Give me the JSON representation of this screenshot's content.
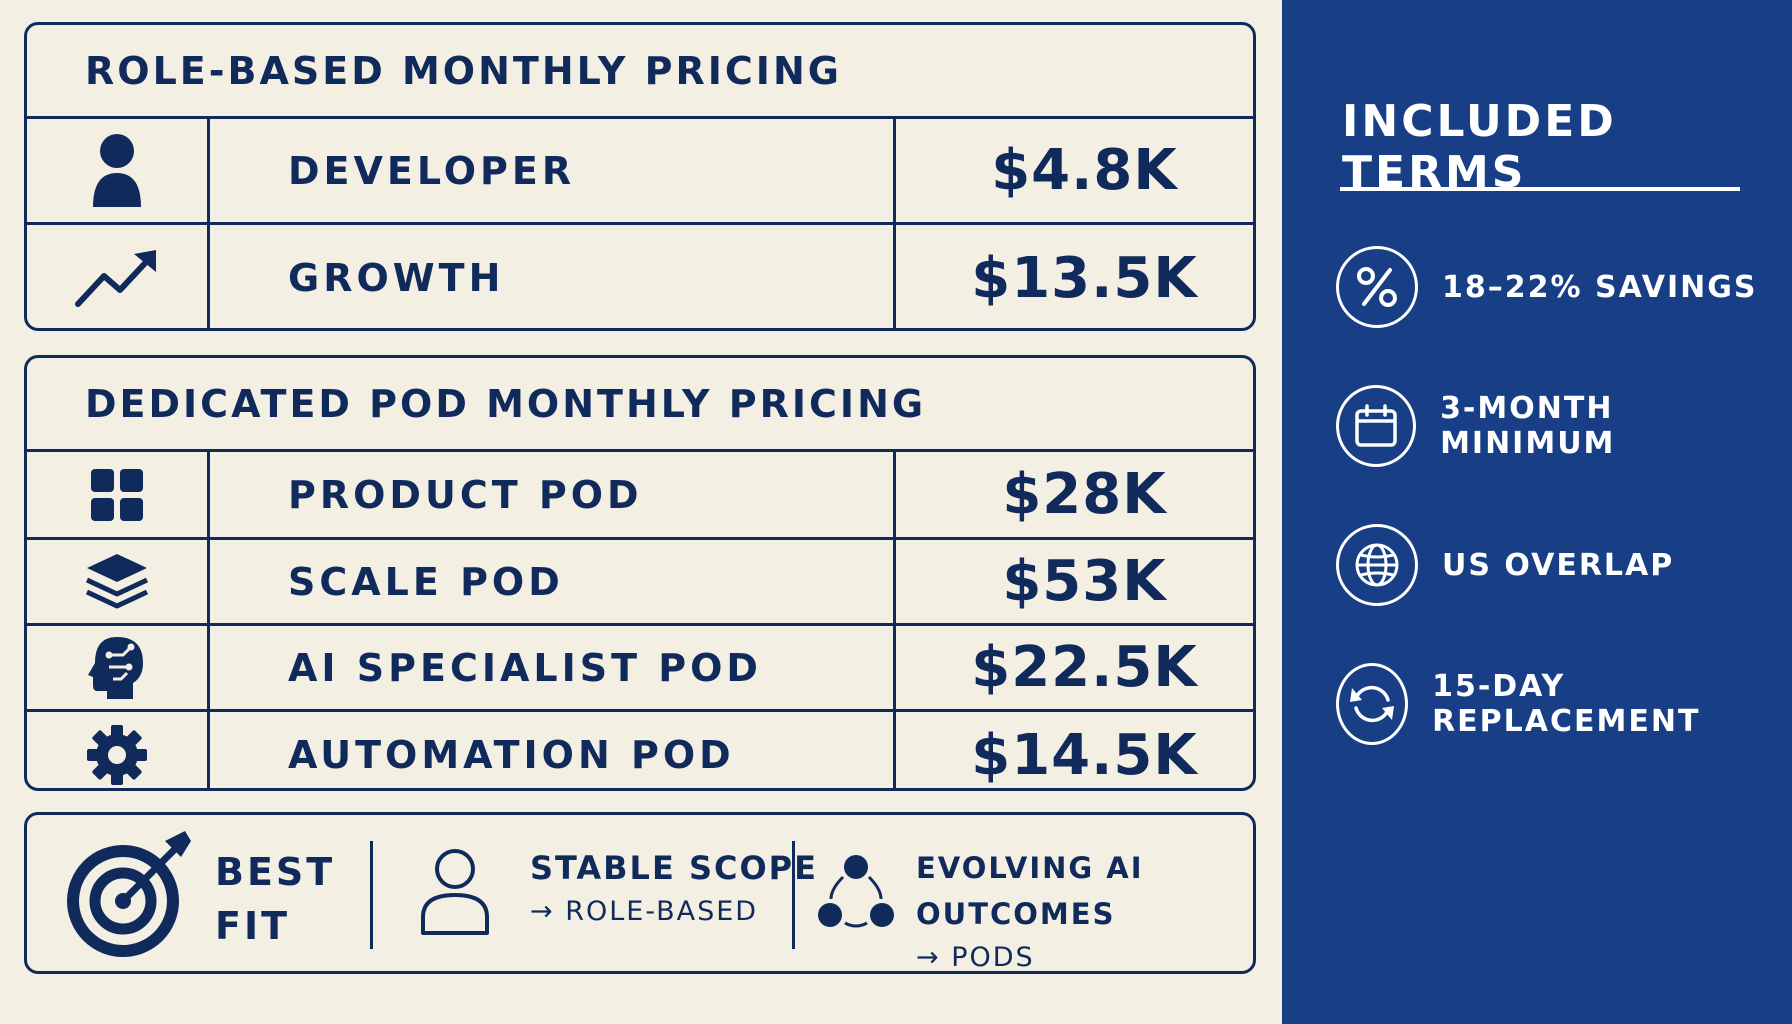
{
  "role_pricing": {
    "title": "ROLE-BASED MONTHLY PRICING",
    "rows": [
      {
        "icon": "person-icon",
        "label": "DEVELOPER",
        "price": "$4.8K"
      },
      {
        "icon": "growth-arrow-icon",
        "label": "GROWTH",
        "price": "$13.5K"
      }
    ]
  },
  "pod_pricing": {
    "title": "DEDICATED POD MONTHLY PRICING",
    "rows": [
      {
        "icon": "grid-icon",
        "label": "PRODUCT POD",
        "price": "$28K"
      },
      {
        "icon": "layers-icon",
        "label": "SCALE POD",
        "price": "$53K"
      },
      {
        "icon": "ai-head-icon",
        "label": "AI SPECIALIST POD",
        "price": "$22.5K"
      },
      {
        "icon": "gear-icon",
        "label": "AUTOMATION POD",
        "price": "$14.5K"
      }
    ]
  },
  "best_fit": {
    "title_line1": "BEST",
    "title_line2": "FIT",
    "option1": {
      "line1": "STABLE SCOPE",
      "line2": "→ ROLE-BASED"
    },
    "option2": {
      "line1": "EVOLVING AI OUTCOMES",
      "line2": "→ PODS"
    }
  },
  "included_terms": {
    "title": "INCLUDED TERMS",
    "items": [
      {
        "icon": "percent-icon",
        "label": "18–22% SAVINGS"
      },
      {
        "icon": "calendar-icon",
        "label": "3-MONTH MINIMUM"
      },
      {
        "icon": "globe-icon",
        "label": "US OVERLAP"
      },
      {
        "icon": "refresh-icon",
        "label": "15-DAY REPLACEMENT"
      }
    ]
  },
  "colors": {
    "navy": "#112a5c",
    "panel_blue": "#183e86",
    "cream": "#f4efe3"
  }
}
